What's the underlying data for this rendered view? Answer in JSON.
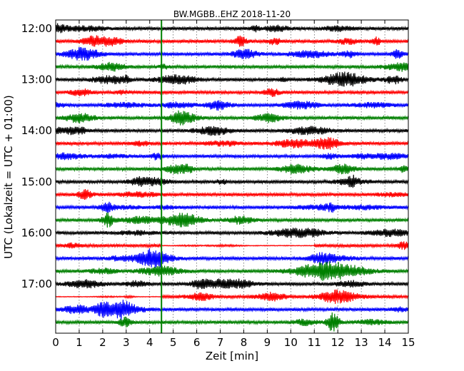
{
  "chart_data": {
    "type": "line",
    "title": "BW.MGBB..EHZ 2018-11-20",
    "xlabel": "Zeit  [min]",
    "ylabel": "UTC (Lokalzeit = UTC + 01:00)",
    "xlim": [
      0,
      15
    ],
    "x_ticks": [
      "0",
      "1",
      "2",
      "3",
      "4",
      "5",
      "6",
      "7",
      "8",
      "9",
      "10",
      "11",
      "12",
      "13",
      "14",
      "15"
    ],
    "y_ticks": [
      "12:00",
      "13:00",
      "14:00",
      "15:00",
      "16:00",
      "17:00"
    ],
    "grid": true,
    "colors": [
      "#000000",
      "#ff0000",
      "#0000ff",
      "#008000"
    ],
    "event_marker_min": 4.5,
    "event_marker_color": "#008000",
    "trace_count": 24,
    "trace_interval_min": 15
  }
}
